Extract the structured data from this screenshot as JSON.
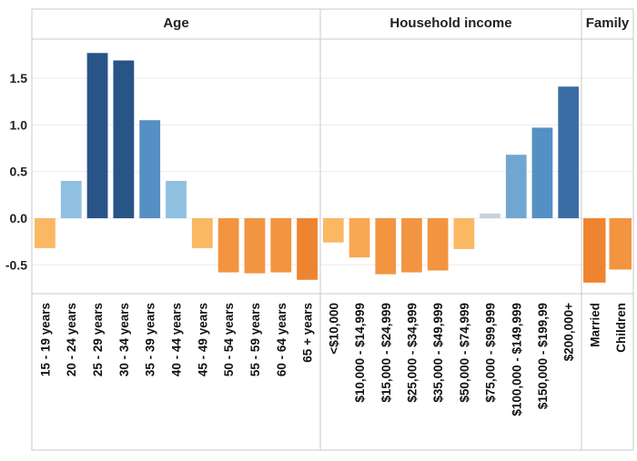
{
  "chart_data": {
    "type": "bar",
    "ylim": [
      -0.78,
      1.95
    ],
    "yticks": [
      {
        "value": -0.5,
        "label": "-0.5"
      },
      {
        "value": 0.0,
        "label": "0.0"
      },
      {
        "value": 0.5,
        "label": "0.5"
      },
      {
        "value": 1.0,
        "label": "1.0"
      },
      {
        "value": 1.5,
        "label": "1.5"
      }
    ],
    "grid": true,
    "panels": [
      {
        "title": "Age",
        "categories": [
          "15 - 19 years",
          "20 - 24 years",
          "25 - 29 years",
          "30 - 34 years",
          "35 - 39 years",
          "40 - 44 years",
          "45 - 49 years",
          "50 - 54 years",
          "55 - 59 years",
          "60 - 64 years",
          "65 + years"
        ],
        "values": [
          -0.32,
          0.4,
          1.77,
          1.69,
          1.05,
          0.4,
          -0.32,
          -0.58,
          -0.59,
          -0.58,
          -0.66
        ]
      },
      {
        "title": "Household income",
        "categories": [
          "<$10,000",
          "$10,000 - $14,999",
          "$15,000 - $24,999",
          "$25,000 - $34,999",
          "$35,000 - $49,999",
          "$50,000 - $74,999",
          "$75,000 - $99,999",
          "$100,000 - $149,999",
          "$150,000 - $199,99",
          "$200,000+"
        ],
        "values": [
          -0.26,
          -0.42,
          -0.6,
          -0.58,
          -0.56,
          -0.33,
          0.05,
          0.68,
          0.97,
          1.41
        ]
      },
      {
        "title": "Family",
        "categories": [
          "Married",
          "Children"
        ],
        "values": [
          -0.69,
          -0.55
        ]
      }
    ],
    "colors": {
      "positive_strong": "#2c5b8e",
      "positive_light": "#8fc0e0",
      "negative_strong": "#f08a30",
      "negative_light": "#fbb863",
      "neutral": "#c8d1d8",
      "border": "#c9c9c9",
      "grid": "#ececec"
    }
  }
}
